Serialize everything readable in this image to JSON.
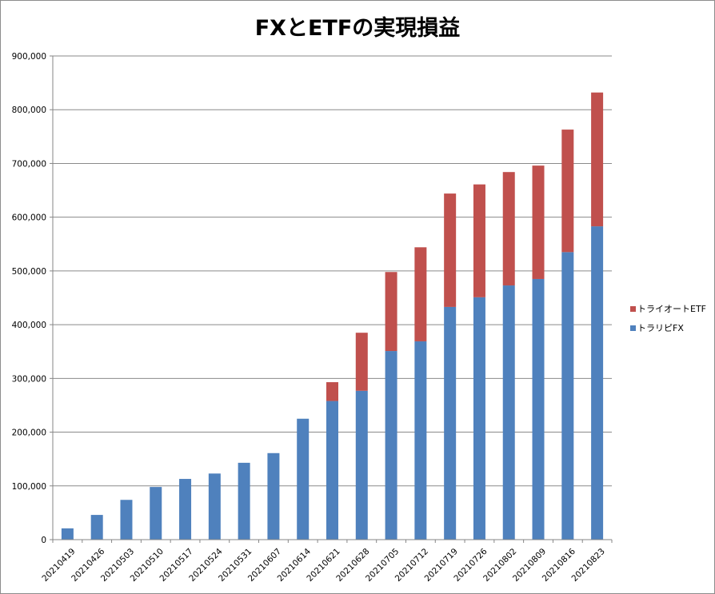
{
  "chart_data": {
    "type": "bar",
    "stacked": true,
    "title": "FXとETFの実現損益",
    "xlabel": "",
    "ylabel": "",
    "ylim": [
      0,
      900000
    ],
    "y_ticks": [
      0,
      100000,
      200000,
      300000,
      400000,
      500000,
      600000,
      700000,
      800000,
      900000
    ],
    "y_tick_labels": [
      "0",
      "100,000",
      "200,000",
      "300,000",
      "400,000",
      "500,000",
      "600,000",
      "700,000",
      "800,000",
      "900,000"
    ],
    "grid": true,
    "legend_position": "right",
    "categories": [
      "20210419",
      "20210426",
      "20210503",
      "20210510",
      "20210517",
      "20210524",
      "20210531",
      "20210607",
      "20210614",
      "20210621",
      "20210628",
      "20210705",
      "20210712",
      "20210719",
      "20210726",
      "20210802",
      "20210809",
      "20210816",
      "20210823"
    ],
    "series": [
      {
        "name": "トラリピFX",
        "color": "#4f81bd",
        "values": [
          21000,
          46000,
          74000,
          98000,
          113000,
          123000,
          143000,
          161000,
          225000,
          258000,
          277000,
          351000,
          369000,
          433000,
          451000,
          473000,
          485000,
          535000,
          583000
        ]
      },
      {
        "name": "トライオートETF",
        "color": "#c0504d",
        "values": [
          0,
          0,
          0,
          0,
          0,
          0,
          0,
          0,
          0,
          35000,
          108000,
          147000,
          175000,
          211000,
          210000,
          211000,
          211000,
          228000,
          249000
        ]
      }
    ]
  }
}
